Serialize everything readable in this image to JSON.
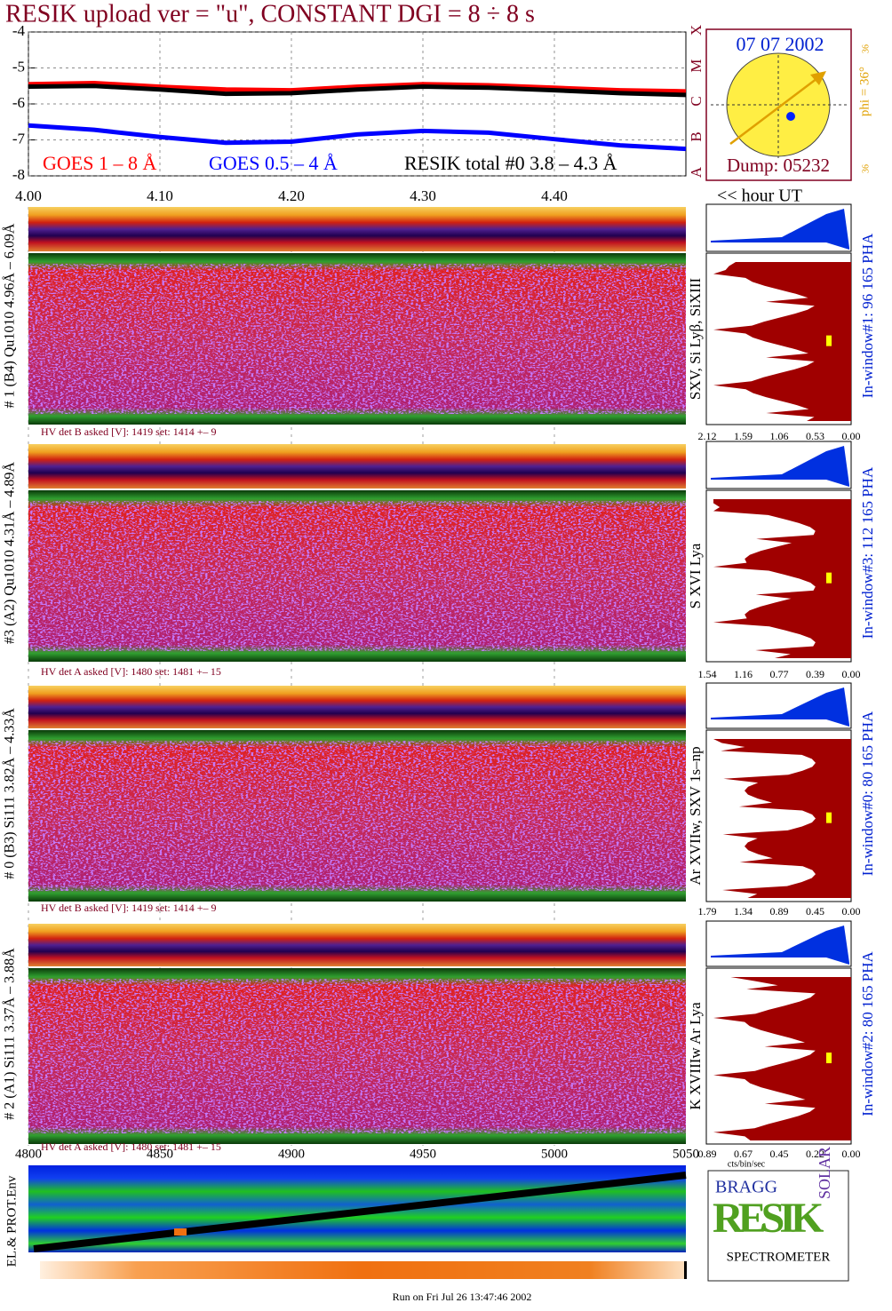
{
  "chart_data": {
    "type": "line",
    "title": "RESIK upload ver = \"u\", CONSTANT  DGI =   8 ÷   8 s",
    "x": [
      4.0,
      4.05,
      4.1,
      4.15,
      4.2,
      4.25,
      4.3,
      4.35,
      4.4,
      4.45,
      4.5
    ],
    "series": [
      {
        "name": "GOES 1 – 8 Å",
        "color": "#ff0000",
        "values": [
          -5.45,
          -5.42,
          -5.52,
          -5.6,
          -5.62,
          -5.52,
          -5.45,
          -5.48,
          -5.55,
          -5.62,
          -5.65
        ]
      },
      {
        "name": "GOES 0.5 – 4 Å",
        "color": "#0000ff",
        "values": [
          -6.6,
          -6.72,
          -6.92,
          -7.08,
          -7.05,
          -6.85,
          -6.75,
          -6.8,
          -6.98,
          -7.15,
          -7.25
        ]
      },
      {
        "name": "RESIK total #0  3.8 – 4.3 Å",
        "color": "#000000",
        "values": [
          -5.52,
          -5.5,
          -5.6,
          -5.72,
          -5.7,
          -5.6,
          -5.52,
          -5.55,
          -5.62,
          -5.7,
          -5.75
        ]
      }
    ],
    "xlim": [
      4.0,
      4.5
    ],
    "xticks": [
      {
        "value": 4.0,
        "label": "4.00"
      },
      {
        "value": 4.1,
        "label": "4.10"
      },
      {
        "value": 4.2,
        "label": "4.20"
      },
      {
        "value": 4.3,
        "label": "4.30"
      },
      {
        "value": 4.4,
        "label": "4.40"
      }
    ],
    "ylim": [
      -8,
      -4
    ],
    "yticks": [
      -4,
      -5,
      -6,
      -7,
      -8
    ],
    "grid": true
  },
  "goes_classes": [
    "A",
    "B",
    "C",
    "M",
    "X"
  ],
  "time_label": "<< hour UT",
  "sun": {
    "date": "07 07 2002",
    "dump": "Dump: 05232",
    "phi": "phi = 36°",
    "scale_top": "36",
    "scale_bottom": "36"
  },
  "panels": [
    {
      "label": "# 1 (B4) Qu1010 4.96Å – 6.09Å",
      "hv": "HV det B asked [V]:  1419 set:  1414  +–   9",
      "lines": "SXV, Si Lyβ, SiXIII",
      "window": "In-window#1:   96 165 PHA",
      "ticks": [
        "2.12",
        "1.59",
        "1.06",
        "0.53",
        "0.00"
      ]
    },
    {
      "label": "#3 (A2) Qu1010  4.31Å – 4.89Å",
      "hv": "HV det A asked [V]:  1480 set:  1481  +–   15",
      "lines": "S XVI Lya",
      "window": "In-window#3:  112 165 PHA",
      "ticks": [
        "1.54",
        "1.16",
        "0.77",
        "0.39",
        "0.00"
      ]
    },
    {
      "label": "# 0 (B3) Si111  3.82Å – 4.33Å",
      "hv": "HV det B asked [V]:  1419 set:  1414  +–   9",
      "lines": "Ar XVIIw, SXV 1s–np",
      "window": "In-window#0:   80 165 PHA",
      "ticks": [
        "1.79",
        "1.34",
        "0.89",
        "0.45",
        "0.00"
      ]
    },
    {
      "label": "# 2 (A1) Si111  3.37Å – 3.88Å",
      "hv": "HV det A asked [V]:  1480 set:  1481  +–   15",
      "lines": "K XVIIIw  Ar Lya",
      "window": "In-window#2:   80 165 PHA",
      "ticks": [
        "0.89",
        "0.67",
        "0.45",
        "0.22",
        "0.00"
      ]
    }
  ],
  "pha_unit": "cts/bin/sec",
  "bottom_axis": {
    "ticks": [
      4800,
      4850,
      4900,
      4950,
      5000,
      5050
    ]
  },
  "env_label": "EL.& PROT.Env",
  "logo": {
    "top": "BRAGG",
    "middle": "RESIK",
    "side": "SOLAR",
    "bottom": "SPECTROMETER"
  },
  "footer": "Run on Fri Jul 26 13:47:46 2002"
}
